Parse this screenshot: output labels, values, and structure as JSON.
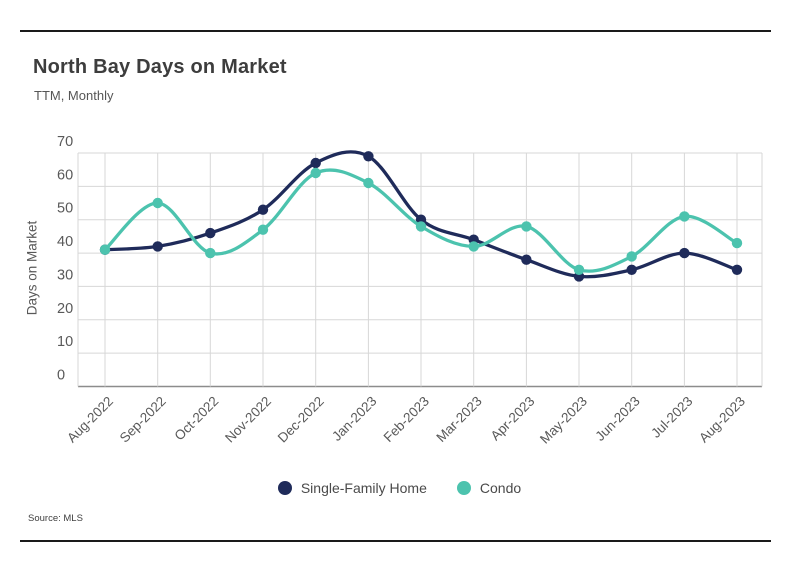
{
  "header": {
    "title": "North Bay Days on Market",
    "subtitle": "TTM, Monthly"
  },
  "footer": {
    "source": "Source: MLS"
  },
  "colors": {
    "single_family": "#1f2b5a",
    "condo": "#4cc3ae",
    "gridline": "#d7d7d7",
    "zero_line": "#8c8c8c",
    "axis_text": "#595959",
    "title_text": "#3d3d3d",
    "divider": "#1a1a1a"
  },
  "chart_data": {
    "type": "line",
    "title": "North Bay Days on Market",
    "subtitle": "TTM, Monthly",
    "xlabel": "",
    "ylabel": "Days on Market",
    "ylim": [
      0,
      70
    ],
    "ytick_step": 10,
    "yticks": [
      0,
      10,
      20,
      30,
      40,
      50,
      60,
      70
    ],
    "grid": true,
    "legend_position": "bottom",
    "marker": "circle",
    "categories": [
      "Aug-2022",
      "Sep-2022",
      "Oct-2022",
      "Nov-2022",
      "Dec-2022",
      "Jan-2023",
      "Feb-2023",
      "Mar-2023",
      "Apr-2023",
      "May-2023",
      "Jun-2023",
      "Jul-2023",
      "Aug-2023"
    ],
    "series": [
      {
        "name": "Single-Family Home",
        "color": "#1f2b5a",
        "values": [
          41,
          42,
          46,
          53,
          67,
          69,
          50,
          44,
          38,
          33,
          35,
          40,
          35
        ]
      },
      {
        "name": "Condo",
        "color": "#4cc3ae",
        "values": [
          41,
          55,
          40,
          47,
          64,
          61,
          48,
          42,
          48,
          35,
          39,
          51,
          43
        ]
      }
    ]
  }
}
